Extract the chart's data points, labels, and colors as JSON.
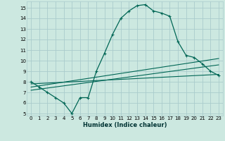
{
  "xlabel": "Humidex (Indice chaleur)",
  "bg_color": "#cce8e0",
  "grid_color": "#aacccc",
  "line_color": "#006655",
  "xlim": [
    -0.5,
    23.5
  ],
  "ylim": [
    4.8,
    15.6
  ],
  "xticks": [
    0,
    1,
    2,
    3,
    4,
    5,
    6,
    7,
    8,
    9,
    10,
    11,
    12,
    13,
    14,
    15,
    16,
    17,
    18,
    19,
    20,
    21,
    22,
    23
  ],
  "yticks": [
    5,
    6,
    7,
    8,
    9,
    10,
    11,
    12,
    13,
    14,
    15
  ],
  "series1_x": [
    0,
    1,
    2,
    3,
    4,
    5,
    6,
    7,
    8,
    9,
    10,
    11,
    12,
    13,
    14,
    15,
    16,
    17,
    18,
    19,
    20,
    21,
    22,
    23
  ],
  "series1_y": [
    8.0,
    7.5,
    7.0,
    6.5,
    6.0,
    5.0,
    6.5,
    6.5,
    9.0,
    10.7,
    12.5,
    14.0,
    14.7,
    15.2,
    15.3,
    14.7,
    14.5,
    14.2,
    11.8,
    10.5,
    10.3,
    9.7,
    9.0,
    8.6
  ],
  "series2_x": [
    0,
    23
  ],
  "series2_y": [
    7.8,
    8.7
  ],
  "series3_x": [
    0,
    23
  ],
  "series3_y": [
    7.5,
    10.2
  ],
  "series4_x": [
    0,
    23
  ],
  "series4_y": [
    7.2,
    9.6
  ]
}
